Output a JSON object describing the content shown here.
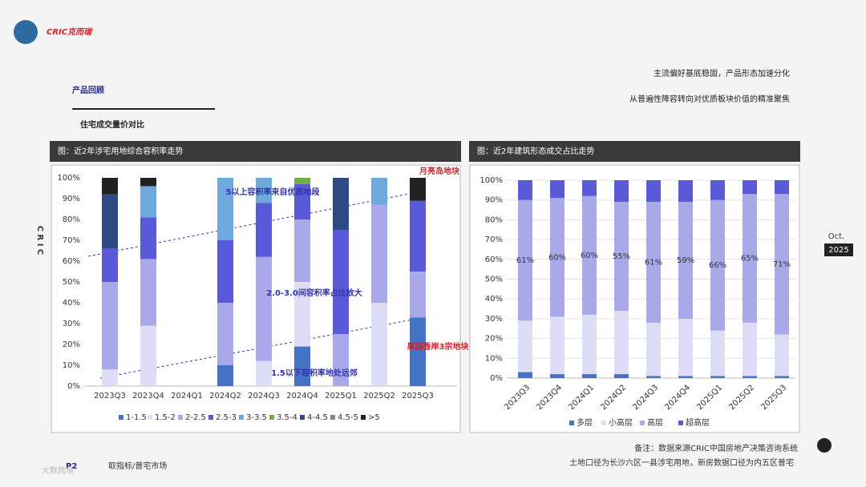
{
  "header": {
    "logo": "CRIC克而瑞",
    "section_title": "产品回顾",
    "section_subtitle": "住宅成交量价对比",
    "headline_1": "主流偏好基底稳固，产品形态加速分化",
    "headline_2": "从普遍性降容转向对优质板块价值的精准聚焦",
    "side_label": "C R I C",
    "date_month": "Oct.",
    "date_year": "2025"
  },
  "footer": {
    "note_1": "备注：数据来源CRIC中国房地产决策咨询系统",
    "note_2": "土地口径为长沙六区一县涉宅用地，新房数据口径为内五区普宅",
    "page": "P2",
    "page_text": "取指标/普宅市场",
    "watermark": "大数跨境"
  },
  "chart_data": [
    {
      "type": "bar",
      "stacked": true,
      "title": "图：近2年涉宅用地综合容积率走势",
      "categories": [
        "2023Q3",
        "2023Q4",
        "2024Q1",
        "2024Q2",
        "2024Q3",
        "2024Q4",
        "2025Q1",
        "2025Q2",
        "2025Q3"
      ],
      "series": [
        {
          "name": "1-1.5",
          "color": "#4472c4",
          "values": [
            0,
            0,
            0,
            10,
            0,
            19,
            0,
            0,
            33
          ]
        },
        {
          "name": "1.5-2",
          "color": "#dcdcf4",
          "values": [
            8,
            29,
            0,
            0,
            12,
            31,
            0,
            40,
            0
          ]
        },
        {
          "name": "2-2.5",
          "color": "#a9a9ea",
          "values": [
            42,
            32,
            0,
            30,
            50,
            30,
            25,
            47,
            22
          ]
        },
        {
          "name": "2.5-3",
          "color": "#5a5ad8",
          "values": [
            16,
            20,
            0,
            30,
            26,
            17,
            50,
            0,
            34
          ]
        },
        {
          "name": "3-3.5",
          "color": "#6fa8dc",
          "values": [
            0,
            15,
            0,
            30,
            12,
            0,
            0,
            13,
            0
          ]
        },
        {
          "name": "3.5-4",
          "color": "#70ad47",
          "values": [
            0,
            0,
            0,
            0,
            0,
            3,
            0,
            0,
            0
          ]
        },
        {
          "name": "4-4.5",
          "color": "#2e4a86",
          "values": [
            26,
            0,
            0,
            0,
            0,
            0,
            25,
            0,
            0
          ]
        },
        {
          "name": "4.5-5",
          "color": "#808080",
          "values": [
            0,
            0,
            0,
            0,
            0,
            0,
            0,
            0,
            0
          ]
        },
        {
          "name": ">5",
          "color": "#222222",
          "values": [
            8,
            4,
            0,
            0,
            0,
            0,
            0,
            0,
            11
          ]
        }
      ],
      "ylim": [
        0,
        100
      ],
      "yticks": [
        {
          "value": 0,
          "label": "0%"
        },
        {
          "value": 10,
          "label": "10%"
        },
        {
          "value": 20,
          "label": "20%"
        },
        {
          "value": 30,
          "label": "30%"
        },
        {
          "value": 40,
          "label": "40%"
        },
        {
          "value": 50,
          "label": "50%"
        },
        {
          "value": 60,
          "label": "60%"
        },
        {
          "value": 70,
          "label": "70%"
        },
        {
          "value": 80,
          "label": "80%"
        },
        {
          "value": 90,
          "label": "90%"
        },
        {
          "value": 100,
          "label": "100%"
        }
      ],
      "annotations": [
        "5以上容积率来自优质地段",
        "2.0-3.0间容积率占比放大",
        "1.5以下容积率地处远郊",
        "月亮岛地块",
        "果园香岸3宗地块"
      ],
      "legend": "bottom"
    },
    {
      "type": "bar",
      "stacked": true,
      "title": "图：近2年建筑形态成交占比走势",
      "categories": [
        "2023Q3",
        "2023Q4",
        "2024Q1",
        "2024Q2",
        "2024Q3",
        "2024Q4",
        "2025Q1",
        "2025Q2",
        "2025Q3"
      ],
      "series": [
        {
          "name": "多层",
          "color": "#4472c4",
          "values": [
            3,
            2,
            2,
            2,
            1,
            1,
            1,
            1,
            1
          ]
        },
        {
          "name": "小高层",
          "color": "#dcdcf4",
          "values": [
            26,
            29,
            30,
            32,
            27,
            29,
            23,
            27,
            21
          ]
        },
        {
          "name": "高层",
          "color": "#a9a9ea",
          "values": [
            61,
            60,
            60,
            55,
            61,
            59,
            66,
            65,
            71
          ],
          "value_labels": [
            "61%",
            "60%",
            "60%",
            "55%",
            "61%",
            "59%",
            "66%",
            "65%",
            "71%"
          ]
        },
        {
          "name": "超高层",
          "color": "#5a5ad8",
          "values": [
            10,
            9,
            8,
            11,
            11,
            11,
            10,
            7,
            7
          ]
        }
      ],
      "ylim": [
        0,
        100
      ],
      "yticks": [
        {
          "value": 0,
          "label": "0%"
        },
        {
          "value": 10,
          "label": "10%"
        },
        {
          "value": 20,
          "label": "20%"
        },
        {
          "value": 30,
          "label": "30%"
        },
        {
          "value": 40,
          "label": "40%"
        },
        {
          "value": 50,
          "label": "50%"
        },
        {
          "value": 60,
          "label": "60%"
        },
        {
          "value": 70,
          "label": "70%"
        },
        {
          "value": 80,
          "label": "80%"
        },
        {
          "value": 90,
          "label": "90%"
        },
        {
          "value": 100,
          "label": "100%"
        }
      ],
      "legend": "bottom"
    }
  ]
}
